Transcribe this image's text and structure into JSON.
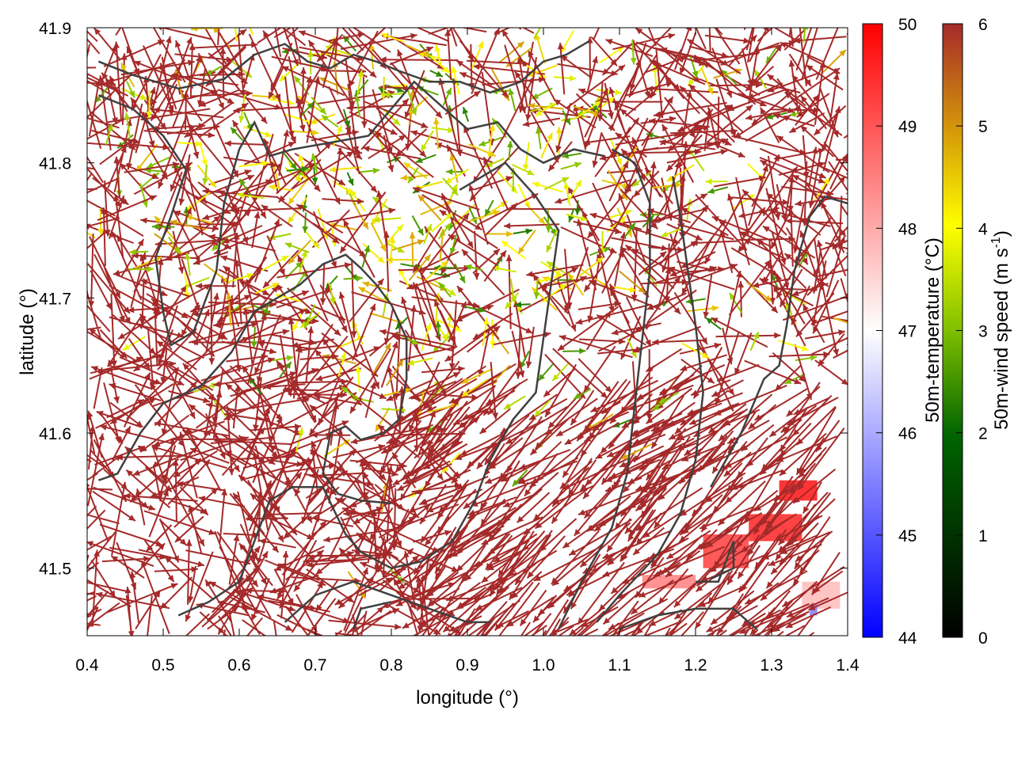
{
  "chart_data": {
    "type": "vector-field",
    "xlabel": "longitude (°)",
    "ylabel": "latitude (°)",
    "xlim": [
      0.4,
      1.4
    ],
    "ylim": [
      41.45,
      41.9
    ],
    "x_ticks": [
      {
        "value": 0.4,
        "label": "0.4"
      },
      {
        "value": 0.5,
        "label": "0.5"
      },
      {
        "value": 0.6,
        "label": "0.6"
      },
      {
        "value": 0.7,
        "label": "0.7"
      },
      {
        "value": 0.8,
        "label": "0.8"
      },
      {
        "value": 0.9,
        "label": "0.9"
      },
      {
        "value": 1.0,
        "label": "1.0"
      },
      {
        "value": 1.1,
        "label": "1.1"
      },
      {
        "value": 1.2,
        "label": "1.2"
      },
      {
        "value": 1.3,
        "label": "1.3"
      },
      {
        "value": 1.4,
        "label": "1.4"
      }
    ],
    "y_ticks": [
      {
        "value": 41.5,
        "label": "41.5"
      },
      {
        "value": 41.6,
        "label": "41.6"
      },
      {
        "value": 41.7,
        "label": "41.7"
      },
      {
        "value": 41.8,
        "label": "41.8"
      },
      {
        "value": 41.9,
        "label": "41.9"
      }
    ],
    "colorbars": [
      {
        "label": "50m-temperature (°C)",
        "range": [
          44,
          50
        ],
        "ticks": [
          {
            "value": 44,
            "label": "44"
          },
          {
            "value": 45,
            "label": "45"
          },
          {
            "value": 46,
            "label": "46"
          },
          {
            "value": 47,
            "label": "47"
          },
          {
            "value": 48,
            "label": "48"
          },
          {
            "value": 49,
            "label": "49"
          },
          {
            "value": 50,
            "label": "50"
          }
        ],
        "colormap": [
          "#0000ff",
          "#ffffff",
          "#ff0000"
        ]
      },
      {
        "label": "50m-wind speed (m s",
        "label_sup": "-1",
        "label_end": ")",
        "range": [
          0,
          6
        ],
        "ticks": [
          {
            "value": 0,
            "label": "0"
          },
          {
            "value": 1,
            "label": "1"
          },
          {
            "value": 2,
            "label": "2"
          },
          {
            "value": 3,
            "label": "3"
          },
          {
            "value": 4,
            "label": "4"
          },
          {
            "value": 5,
            "label": "5"
          },
          {
            "value": 6,
            "label": "6"
          }
        ],
        "colormap": [
          "#000000",
          "#006400",
          "#7fbf00",
          "#ffff00",
          "#d4960a",
          "#a52a2a"
        ]
      }
    ],
    "contour_color": "#404040",
    "contours": [
      [
        [
          0.415,
          41.875
        ],
        [
          0.46,
          41.865
        ],
        [
          0.52,
          41.855
        ],
        [
          0.58,
          41.862
        ],
        [
          0.62,
          41.88
        ],
        [
          0.66,
          41.888
        ],
        [
          0.69,
          41.875
        ],
        [
          0.72,
          41.87
        ],
        [
          0.75,
          41.88
        ],
        [
          0.78,
          41.875
        ],
        [
          0.81,
          41.868
        ],
        [
          0.85,
          41.86
        ],
        [
          0.89,
          41.86
        ],
        [
          0.93,
          41.852
        ],
        [
          0.97,
          41.86
        ],
        [
          1.0,
          41.875
        ],
        [
          1.03,
          41.88
        ],
        [
          1.06,
          41.89
        ]
      ],
      [
        [
          0.415,
          41.85
        ],
        [
          0.46,
          41.84
        ],
        [
          0.5,
          41.82
        ],
        [
          0.53,
          41.795
        ],
        [
          0.51,
          41.76
        ],
        [
          0.49,
          41.73
        ],
        [
          0.5,
          41.69
        ],
        [
          0.51,
          41.665
        ],
        [
          0.54,
          41.675
        ],
        [
          0.57,
          41.72
        ],
        [
          0.58,
          41.77
        ],
        [
          0.6,
          41.81
        ],
        [
          0.62,
          41.83
        ],
        [
          0.64,
          41.805
        ],
        [
          0.67,
          41.81
        ],
        [
          0.72,
          41.815
        ],
        [
          0.77,
          41.82
        ],
        [
          0.8,
          41.84
        ],
        [
          0.83,
          41.86
        ],
        [
          0.86,
          41.845
        ],
        [
          0.9,
          41.825
        ],
        [
          0.94,
          41.83
        ],
        [
          0.97,
          41.81
        ],
        [
          1.0,
          41.8
        ],
        [
          1.04,
          41.81
        ],
        [
          1.08,
          41.805
        ]
      ],
      [
        [
          0.415,
          41.565
        ],
        [
          0.44,
          41.57
        ],
        [
          0.47,
          41.6
        ],
        [
          0.5,
          41.622
        ],
        [
          0.55,
          41.635
        ],
        [
          0.59,
          41.66
        ],
        [
          0.62,
          41.69
        ],
        [
          0.65,
          41.7
        ],
        [
          0.68,
          41.71
        ],
        [
          0.71,
          41.725
        ],
        [
          0.74,
          41.732
        ],
        [
          0.76,
          41.722
        ],
        [
          0.78,
          41.71
        ],
        [
          0.8,
          41.695
        ],
        [
          0.82,
          41.67
        ],
        [
          0.82,
          41.64
        ],
        [
          0.81,
          41.61
        ],
        [
          0.79,
          41.6
        ],
        [
          0.76,
          41.595
        ],
        [
          0.74,
          41.605
        ],
        [
          0.72,
          41.6
        ],
        [
          0.71,
          41.57
        ],
        [
          0.73,
          41.555
        ],
        [
          0.76,
          41.55
        ],
        [
          0.8,
          41.548
        ]
      ],
      [
        [
          0.52,
          41.465
        ],
        [
          0.56,
          41.475
        ],
        [
          0.6,
          41.49
        ],
        [
          0.62,
          41.52
        ],
        [
          0.64,
          41.55
        ],
        [
          0.67,
          41.56
        ],
        [
          0.71,
          41.56
        ],
        [
          0.74,
          41.525
        ],
        [
          0.76,
          41.512
        ],
        [
          0.8,
          41.5
        ],
        [
          0.84,
          41.505
        ],
        [
          0.88,
          41.52
        ],
        [
          0.91,
          41.55
        ],
        [
          0.93,
          41.58
        ],
        [
          0.96,
          41.61
        ],
        [
          0.99,
          41.63
        ],
        [
          1.0,
          41.67
        ],
        [
          1.01,
          41.71
        ],
        [
          1.02,
          41.75
        ],
        [
          0.99,
          41.775
        ],
        [
          0.95,
          41.8
        ],
        [
          0.92,
          41.79
        ],
        [
          0.89,
          41.78
        ]
      ],
      [
        [
          0.66,
          41.46
        ],
        [
          0.7,
          41.48
        ],
        [
          0.75,
          41.49
        ],
        [
          0.8,
          41.48
        ],
        [
          0.85,
          41.47
        ],
        [
          0.9,
          41.46
        ],
        [
          0.93,
          41.46
        ]
      ],
      [
        [
          0.75,
          41.455
        ],
        [
          0.76,
          41.47
        ],
        [
          0.8,
          41.475
        ]
      ],
      [
        [
          1.02,
          41.455
        ],
        [
          1.05,
          41.49
        ],
        [
          1.09,
          41.53
        ],
        [
          1.11,
          41.57
        ],
        [
          1.12,
          41.62
        ],
        [
          1.13,
          41.67
        ],
        [
          1.14,
          41.72
        ],
        [
          1.14,
          41.77
        ],
        [
          1.12,
          41.8
        ],
        [
          1.09,
          41.81
        ]
      ],
      [
        [
          1.1,
          41.455
        ],
        [
          1.15,
          41.465
        ],
        [
          1.2,
          41.47
        ],
        [
          1.25,
          41.47
        ],
        [
          1.28,
          41.455
        ]
      ],
      [
        [
          1.07,
          41.46
        ],
        [
          1.1,
          41.48
        ],
        [
          1.15,
          41.51
        ],
        [
          1.18,
          41.54
        ],
        [
          1.2,
          41.58
        ],
        [
          1.21,
          41.63
        ],
        [
          1.2,
          41.68
        ],
        [
          1.19,
          41.72
        ],
        [
          1.18,
          41.76
        ],
        [
          1.17,
          41.79
        ]
      ],
      [
        [
          1.2,
          41.49
        ],
        [
          1.23,
          41.49
        ],
        [
          1.25,
          41.52
        ],
        [
          1.25,
          41.5
        ],
        [
          1.22,
          41.492
        ]
      ],
      [
        [
          1.22,
          41.56
        ],
        [
          1.26,
          41.6
        ],
        [
          1.29,
          41.64
        ],
        [
          1.31,
          41.65
        ],
        [
          1.32,
          41.68
        ],
        [
          1.33,
          41.72
        ],
        [
          1.35,
          41.76
        ],
        [
          1.37,
          41.775
        ],
        [
          1.4,
          41.77
        ]
      ]
    ],
    "temperature_patches": [
      {
        "lon": 1.13,
        "lat": 41.485,
        "w": 0.07,
        "h": 0.01,
        "value": 48.5
      },
      {
        "lon": 1.21,
        "lat": 41.5,
        "w": 0.06,
        "h": 0.025,
        "value": 49.3
      },
      {
        "lon": 1.27,
        "lat": 41.52,
        "w": 0.07,
        "h": 0.02,
        "value": 49.6
      },
      {
        "lon": 1.31,
        "lat": 41.55,
        "w": 0.05,
        "h": 0.015,
        "value": 49.8
      },
      {
        "lon": 1.34,
        "lat": 41.47,
        "w": 0.05,
        "h": 0.02,
        "value": 47.8
      },
      {
        "lon": 1.35,
        "lat": 41.465,
        "w": 0.01,
        "h": 0.008,
        "value": 45.5
      }
    ],
    "vectors": {
      "count": 2200,
      "dominant_speed": 6,
      "description": "dense wind vectors colored by speed; predominantly 6 m/s (brown), with weaker yellow/green vectors in the northern and central area"
    }
  }
}
